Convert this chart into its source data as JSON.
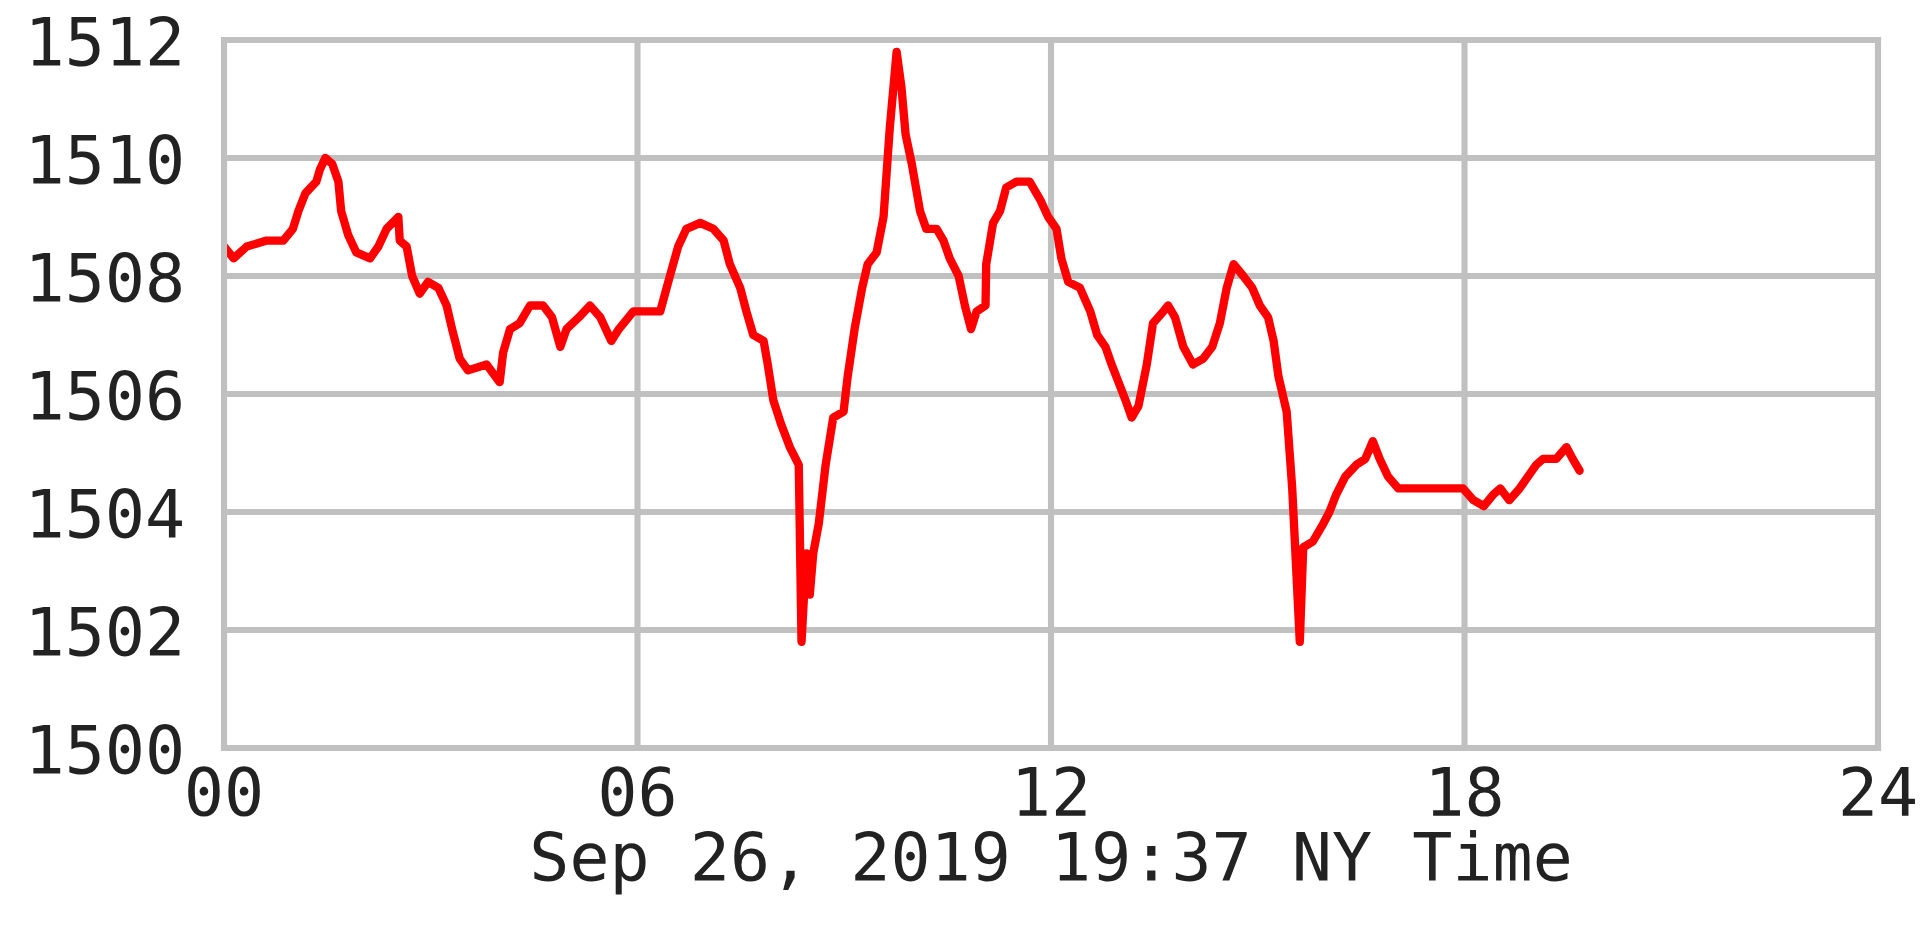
{
  "chart_data": {
    "type": "line",
    "xlabel": "Sep 26, 2019 19:37 NY Time",
    "x": [
      0.0,
      0.14,
      0.33,
      0.62,
      0.86,
      1.0,
      1.08,
      1.18,
      1.34,
      1.39,
      1.47,
      1.57,
      1.66,
      1.7,
      1.8,
      1.92,
      2.12,
      2.24,
      2.36,
      2.53,
      2.55,
      2.65,
      2.73,
      2.84,
      2.96,
      3.11,
      3.23,
      3.31,
      3.42,
      3.54,
      3.81,
      4.0,
      4.05,
      4.15,
      4.29,
      4.44,
      4.63,
      4.76,
      4.88,
      4.97,
      5.15,
      5.31,
      5.46,
      5.62,
      5.73,
      5.94,
      6.04,
      6.33,
      6.4,
      6.47,
      6.59,
      6.71,
      6.91,
      7.1,
      7.25,
      7.34,
      7.49,
      7.58,
      7.68,
      7.83,
      7.89,
      7.97,
      8.08,
      8.21,
      8.34,
      8.38,
      8.45,
      8.5,
      8.55,
      8.63,
      8.73,
      8.84,
      8.99,
      9.05,
      9.15,
      9.26,
      9.34,
      9.47,
      9.57,
      9.66,
      9.76,
      9.83,
      9.89,
      9.98,
      10.1,
      10.19,
      10.34,
      10.44,
      10.53,
      10.66,
      10.75,
      10.84,
      10.92,
      11.05,
      11.06,
      11.16,
      11.26,
      11.35,
      11.5,
      11.69,
      11.84,
      11.96,
      12.08,
      12.15,
      12.25,
      12.42,
      12.57,
      12.67,
      12.79,
      12.88,
      12.98,
      13.08,
      13.17,
      13.27,
      13.39,
      13.48,
      13.63,
      13.7,
      13.8,
      13.92,
      14.06,
      14.21,
      14.34,
      14.45,
      14.55,
      14.65,
      14.79,
      14.92,
      15.03,
      15.15,
      15.23,
      15.3,
      15.42,
      15.5,
      15.53,
      15.61,
      15.66,
      15.8,
      15.95,
      16.04,
      16.14,
      16.27,
      16.43,
      16.56,
      16.67,
      16.77,
      16.89,
      17.04,
      17.26,
      17.64,
      17.98,
      18.13,
      18.28,
      18.42,
      18.52,
      18.65,
      18.8,
      18.92,
      19.04,
      19.14,
      19.33,
      19.48,
      19.57,
      19.67
    ],
    "series": [
      {
        "color": "#ff0000",
        "values": [
          1508.5,
          1508.3,
          1508.5,
          1508.6,
          1508.6,
          1508.8,
          1509.1,
          1509.4,
          1509.6,
          1509.8,
          1510.0,
          1509.9,
          1509.6,
          1509.1,
          1508.7,
          1508.4,
          1508.3,
          1508.5,
          1508.8,
          1509.0,
          1508.6,
          1508.5,
          1508.0,
          1507.7,
          1507.9,
          1507.8,
          1507.5,
          1507.1,
          1506.6,
          1506.4,
          1506.5,
          1506.2,
          1506.7,
          1507.1,
          1507.2,
          1507.5,
          1507.5,
          1507.3,
          1506.8,
          1507.1,
          1507.3,
          1507.5,
          1507.3,
          1506.9,
          1507.1,
          1507.4,
          1507.4,
          1507.4,
          1507.7,
          1508.0,
          1508.5,
          1508.8,
          1508.9,
          1508.8,
          1508.6,
          1508.2,
          1507.8,
          1507.4,
          1507.0,
          1506.9,
          1506.5,
          1505.9,
          1505.5,
          1505.1,
          1504.8,
          1501.8,
          1503.3,
          1502.6,
          1503.3,
          1503.8,
          1504.8,
          1505.6,
          1505.7,
          1506.3,
          1507.1,
          1507.8,
          1508.2,
          1508.4,
          1509.0,
          1510.5,
          1511.8,
          1511.2,
          1510.4,
          1509.9,
          1509.1,
          1508.8,
          1508.8,
          1508.6,
          1508.3,
          1508.0,
          1507.5,
          1507.1,
          1507.4,
          1507.5,
          1508.2,
          1508.9,
          1509.1,
          1509.5,
          1509.6,
          1509.6,
          1509.3,
          1509.0,
          1508.8,
          1508.3,
          1507.9,
          1507.8,
          1507.4,
          1507.0,
          1506.8,
          1506.5,
          1506.2,
          1505.9,
          1505.6,
          1505.8,
          1506.5,
          1507.2,
          1507.4,
          1507.5,
          1507.3,
          1506.8,
          1506.5,
          1506.6,
          1506.8,
          1507.2,
          1507.8,
          1508.2,
          1508.0,
          1507.8,
          1507.5,
          1507.3,
          1506.9,
          1506.3,
          1505.7,
          1504.4,
          1503.7,
          1501.8,
          1503.4,
          1503.5,
          1503.8,
          1504.0,
          1504.3,
          1504.6,
          1504.8,
          1504.9,
          1505.2,
          1504.9,
          1504.6,
          1504.4,
          1504.4,
          1504.4,
          1504.4,
          1504.2,
          1504.1,
          1504.3,
          1504.4,
          1504.2,
          1504.4,
          1504.6,
          1504.8,
          1504.9,
          1504.9,
          1505.1,
          1504.9,
          1504.7
        ]
      }
    ],
    "xlim": [
      0,
      24
    ],
    "xticks": [
      {
        "value": 0,
        "label": "00"
      },
      {
        "value": 6,
        "label": "06"
      },
      12,
      18,
      24
    ],
    "ylim": [
      1500,
      1512
    ],
    "yticks": [
      1500,
      1502,
      1504,
      1506,
      1508,
      1510,
      1512
    ],
    "grid": true,
    "line_style": "solid"
  }
}
